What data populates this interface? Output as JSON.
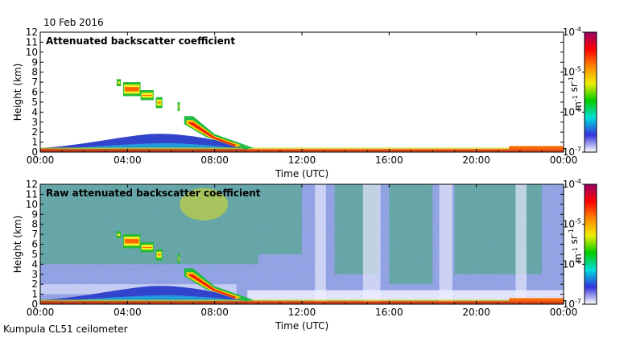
{
  "date_label": "10 Feb 2016",
  "footer_label": "Kumpula CL51 ceilometer",
  "chart_data": [
    {
      "type": "heatmap",
      "title": "Attenuated backscatter coefficient",
      "xlabel": "Time (UTC)",
      "ylabel": "Height (km)",
      "xlim": [
        "00:00",
        "24:00"
      ],
      "ylim": [
        0,
        12
      ],
      "x_ticks": [
        "00:00",
        "04:00",
        "08:00",
        "12:00",
        "16:00",
        "20:00",
        "00:00"
      ],
      "y_ticks": [
        "0",
        "1",
        "2",
        "3",
        "4",
        "5",
        "6",
        "7",
        "8",
        "9",
        "10",
        "11",
        "12"
      ],
      "colorbar": {
        "scale": "log",
        "range": [
          1e-07,
          0.0001
        ],
        "tick_labels": [
          "10-7",
          "10-6",
          "10-5",
          "10-4"
        ],
        "ticks": [
          {
            "base": "10",
            "exp": "-7"
          },
          {
            "base": "10",
            "exp": "-6"
          },
          {
            "base": "10",
            "exp": "-5"
          },
          {
            "base": "10",
            "exp": "-4"
          }
        ],
        "unit": "m-1 sr-1",
        "unit_parts": [
          {
            "base": "m",
            "exp": "-1"
          },
          {
            "base": " sr",
            "exp": "-1"
          }
        ],
        "colors": [
          "#ffffff",
          "#3333dd",
          "#00dddd",
          "#00cc00",
          "#eeee00",
          "#ff8800",
          "#ff0000",
          "#990066"
        ]
      },
      "features": [
        {
          "name": "boundary layer",
          "x_range": [
            "00:00",
            "10:00"
          ],
          "y_range": [
            0.0,
            2.0
          ]
        },
        {
          "name": "descending cloud",
          "x_range": [
            "06:30",
            "09:30"
          ],
          "y_range": [
            0.3,
            3.5
          ]
        },
        {
          "name": "elevated layer",
          "x_range": [
            "03:30",
            "06:30"
          ],
          "y_range": [
            4.0,
            7.5
          ]
        },
        {
          "name": "surface layer",
          "x_range": [
            "10:00",
            "24:00"
          ],
          "y_range": [
            0.0,
            0.5
          ]
        }
      ]
    },
    {
      "type": "heatmap",
      "title": "Raw attenuated backscatter coefficient",
      "xlabel": "Time (UTC)",
      "ylabel": "Height (km)",
      "xlim": [
        "00:00",
        "24:00"
      ],
      "ylim": [
        0,
        12
      ],
      "x_ticks": [
        "00:00",
        "04:00",
        "08:00",
        "12:00",
        "16:00",
        "20:00",
        "00:00"
      ],
      "y_ticks": [
        "0",
        "1",
        "2",
        "3",
        "4",
        "5",
        "6",
        "7",
        "8",
        "9",
        "10",
        "11",
        "12"
      ],
      "colorbar": {
        "scale": "log",
        "range": [
          1e-07,
          0.0001
        ],
        "tick_labels": [
          "10-7",
          "10-6",
          "10-5",
          "10-4"
        ],
        "ticks": [
          {
            "base": "10",
            "exp": "-7"
          },
          {
            "base": "10",
            "exp": "-6"
          },
          {
            "base": "10",
            "exp": "-5"
          },
          {
            "base": "10",
            "exp": "-4"
          }
        ],
        "unit": "m-1 sr-1",
        "unit_parts": [
          {
            "base": "m",
            "exp": "-1"
          },
          {
            "base": " sr",
            "exp": "-1"
          }
        ],
        "colors": [
          "#ffffff",
          "#3333dd",
          "#00dddd",
          "#00cc00",
          "#eeee00",
          "#ff8800",
          "#ff0000",
          "#990066"
        ]
      }
    }
  ]
}
